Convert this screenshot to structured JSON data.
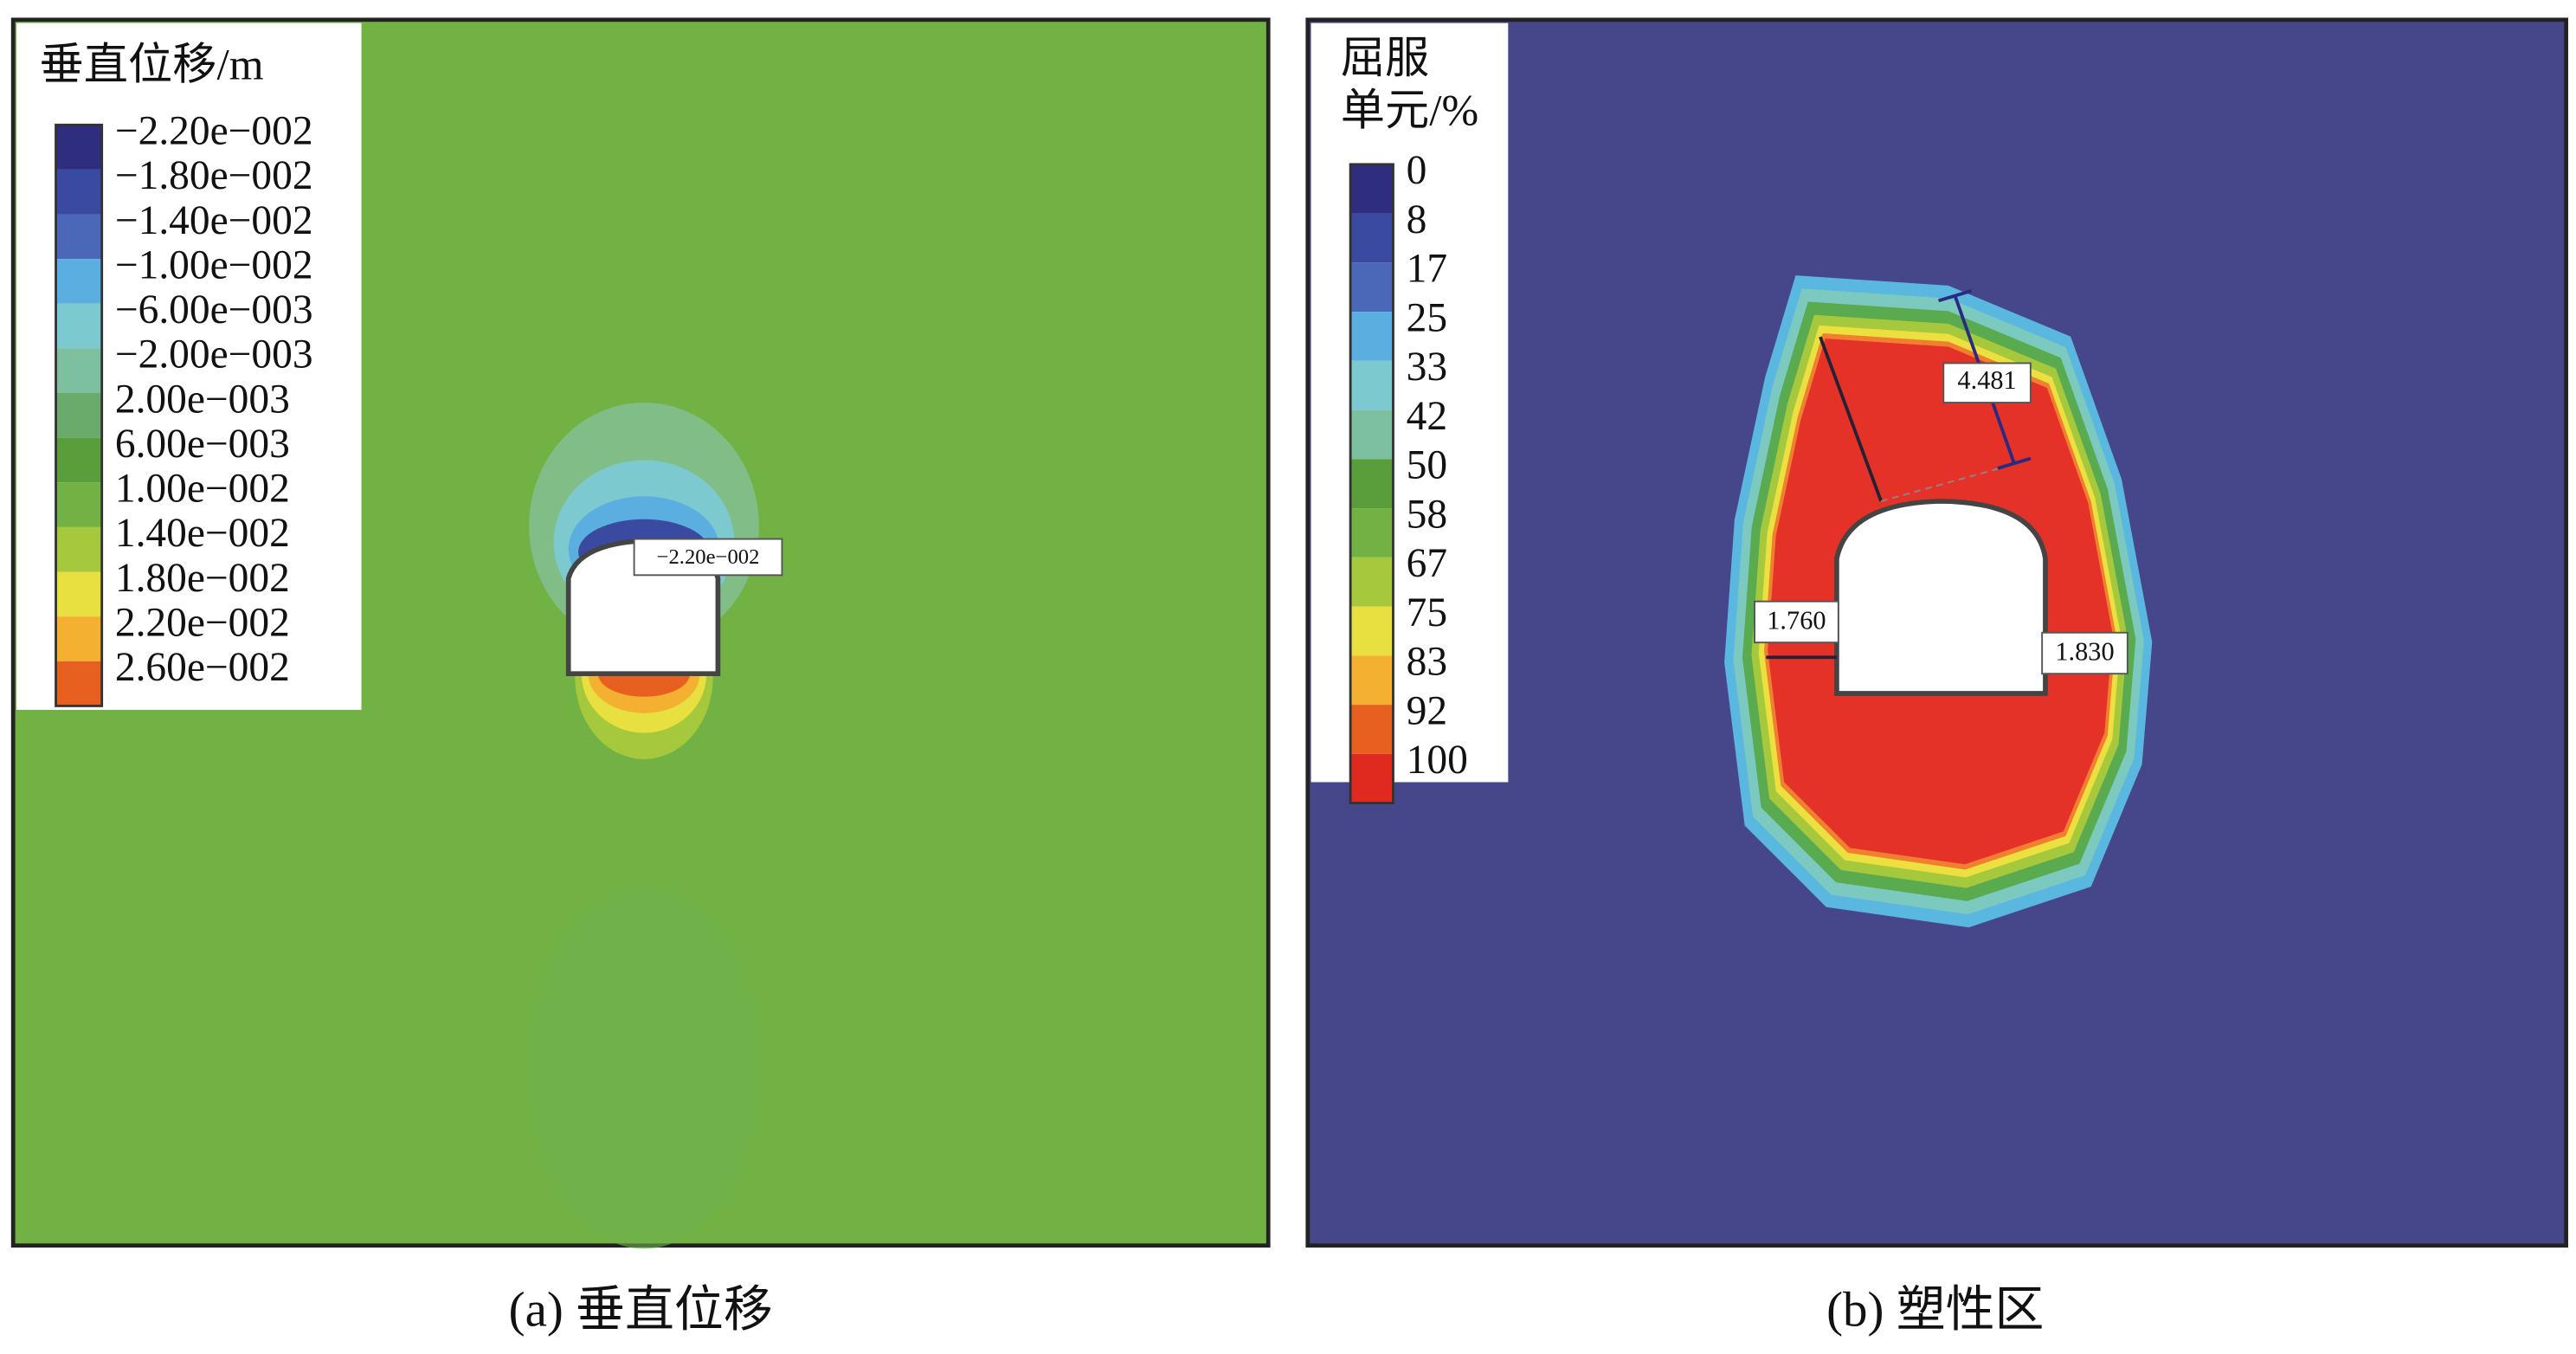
{
  "panels": [
    {
      "legend": {
        "title_lines": [
          "垂直位移/m"
        ],
        "labels": [
          "−2.20e−002",
          "−1.80e−002",
          "−1.40e−002",
          "−1.00e−002",
          "−6.00e−003",
          "−2.00e−003",
          "2.00e−003",
          "6.00e−003",
          "1.00e−002",
          "1.40e−002",
          "1.80e−002",
          "2.20e−002",
          "2.60e−002"
        ]
      },
      "annotations": [
        "−2.20e−002"
      ],
      "caption": "(a) 垂直位移"
    },
    {
      "legend": {
        "title_lines": [
          "屈服",
          "单元/%"
        ],
        "labels": [
          "0",
          "8",
          "17",
          "25",
          "33",
          "42",
          "50",
          "58",
          "67",
          "75",
          "83",
          "92",
          "100"
        ]
      },
      "annotations": [
        "4.481",
        "1.760",
        "1.830"
      ],
      "caption": "(b) 塑性区"
    }
  ]
}
